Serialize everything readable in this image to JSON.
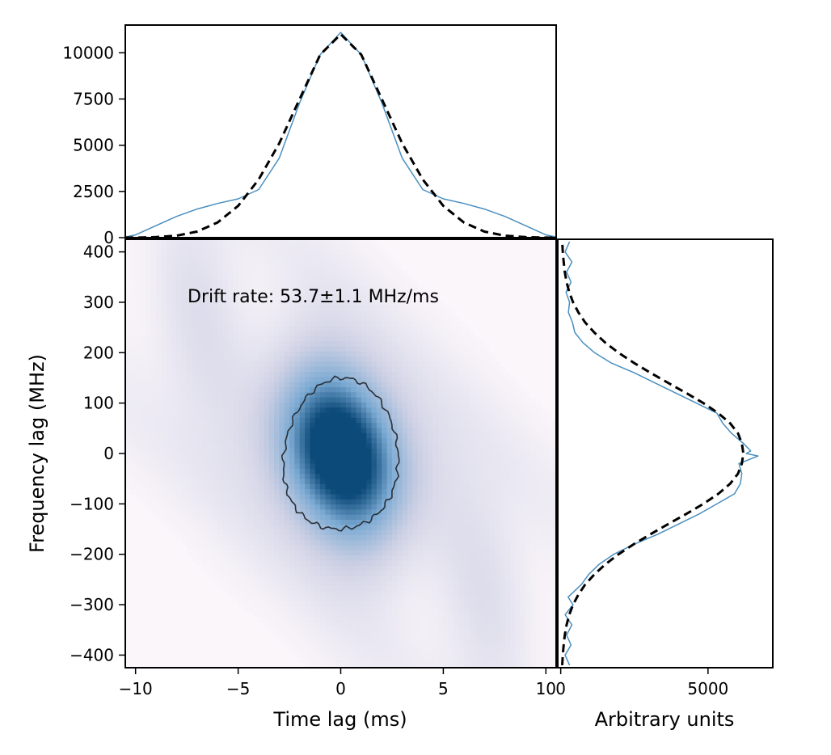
{
  "colors": {
    "profile_line": "#4a8fc0",
    "fit_dash": "#000000",
    "heatmap_low": "#fbf6fa",
    "heatmap_mid": "#7aa9d2",
    "heatmap_high": "#0c4a7a",
    "contour": "#2a2f36"
  },
  "chart_data": [
    {
      "id": "acf2d",
      "type": "heatmap",
      "title": "",
      "xlabel": "Time lag (ms)",
      "ylabel": "Frequency lag (MHz)",
      "xlim": [
        -10.5,
        10.5
      ],
      "ylim": [
        -425,
        425
      ],
      "xticks": [
        -10,
        -5,
        0,
        5,
        10
      ],
      "xtick_labels": [
        "−10",
        "−5",
        "0",
        "5",
        "10"
      ],
      "yticks": [
        -400,
        -300,
        -200,
        -100,
        0,
        100,
        200,
        300,
        400
      ],
      "ytick_labels": [
        "−400",
        "−300",
        "−200",
        "−100",
        "0",
        "100",
        "200",
        "300",
        "400"
      ],
      "annotation": "Drift rate: 53.7±1.1 MHz/ms",
      "core": {
        "sigma_t_ms": 2.6,
        "sigma_f_mhz": 125,
        "drift_mhz_per_ms": 53.7
      },
      "contour": {
        "center": [
          0,
          0
        ],
        "half_width_ms": 2.8,
        "half_height_mhz": 150
      }
    },
    {
      "id": "time_profile",
      "type": "line",
      "xlim": [
        -10.5,
        10.5
      ],
      "ylim": [
        0,
        11500
      ],
      "yticks": [
        0,
        2500,
        5000,
        7500,
        10000
      ],
      "ytick_labels": [
        "0",
        "2500",
        "5000",
        "7500",
        "10000"
      ],
      "series": [
        {
          "name": "data",
          "style": "solid",
          "x": [
            -10.5,
            -10,
            -9,
            -8,
            -7,
            -6,
            -5,
            -4,
            -3,
            -2,
            -1,
            0,
            1,
            2,
            3,
            4,
            5,
            6,
            7,
            8,
            9,
            10,
            10.5
          ],
          "y": [
            40,
            150,
            650,
            1150,
            1550,
            1850,
            2100,
            2600,
            4300,
            7300,
            9900,
            11100,
            9900,
            7300,
            4300,
            2600,
            2100,
            1850,
            1550,
            1150,
            650,
            150,
            40
          ]
        },
        {
          "name": "fit",
          "style": "dashed",
          "x": [
            -10.5,
            -10,
            -9,
            -8,
            -7,
            -6,
            -5,
            -4,
            -3,
            -2,
            -1,
            0,
            1,
            2,
            3,
            4,
            5,
            6,
            7,
            8,
            9,
            10,
            10.5
          ],
          "y": [
            0,
            5,
            30,
            110,
            330,
            820,
            1720,
            3150,
            5100,
            7500,
            9900,
            11000,
            9900,
            7500,
            5100,
            3150,
            1720,
            820,
            330,
            110,
            30,
            5,
            0
          ]
        }
      ]
    },
    {
      "id": "freq_profile",
      "type": "line",
      "xlabel": "Arbitrary units",
      "xlim": [
        -100,
        7200
      ],
      "ylim": [
        -425,
        425
      ],
      "xticks": [
        0,
        5000
      ],
      "xtick_labels": [
        "0",
        "5000"
      ],
      "series": [
        {
          "name": "data",
          "style": "solid",
          "y": [
            -420,
            -400,
            -380,
            -360,
            -340,
            -320,
            -300,
            -285,
            -260,
            -240,
            -220,
            -200,
            -180,
            -160,
            -140,
            -120,
            -100,
            -80,
            -60,
            -40,
            -20,
            -5,
            0,
            5,
            20,
            40,
            60,
            80,
            100,
            120,
            140,
            160,
            180,
            200,
            220,
            240,
            260,
            280,
            300,
            320,
            340,
            360,
            380,
            400,
            420
          ],
          "x": [
            300,
            150,
            350,
            200,
            380,
            150,
            420,
            250,
            700,
            950,
            1300,
            1800,
            2500,
            3300,
            4000,
            4700,
            5300,
            5900,
            6100,
            6150,
            6050,
            6700,
            6300,
            6450,
            6200,
            5800,
            5500,
            5300,
            4600,
            3900,
            3200,
            2500,
            1700,
            1150,
            750,
            480,
            400,
            260,
            300,
            180,
            350,
            200,
            380,
            150,
            300
          ]
        },
        {
          "name": "fit",
          "style": "dashed",
          "y": [
            -420,
            -400,
            -380,
            -360,
            -340,
            -320,
            -300,
            -280,
            -260,
            -240,
            -220,
            -200,
            -180,
            -160,
            -140,
            -120,
            -100,
            -80,
            -60,
            -40,
            -20,
            0,
            20,
            40,
            60,
            80,
            100,
            120,
            140,
            160,
            180,
            200,
            220,
            240,
            260,
            280,
            300,
            320,
            340,
            360,
            380,
            400,
            420
          ],
          "x": [
            50,
            70,
            100,
            140,
            200,
            290,
            420,
            600,
            830,
            1140,
            1510,
            1960,
            2480,
            3050,
            3650,
            4260,
            4840,
            5350,
            5750,
            6020,
            6150,
            6200,
            6150,
            6020,
            5750,
            5350,
            4840,
            4260,
            3650,
            3050,
            2480,
            1960,
            1510,
            1140,
            830,
            600,
            420,
            290,
            200,
            140,
            100,
            70,
            50
          ]
        }
      ]
    }
  ]
}
